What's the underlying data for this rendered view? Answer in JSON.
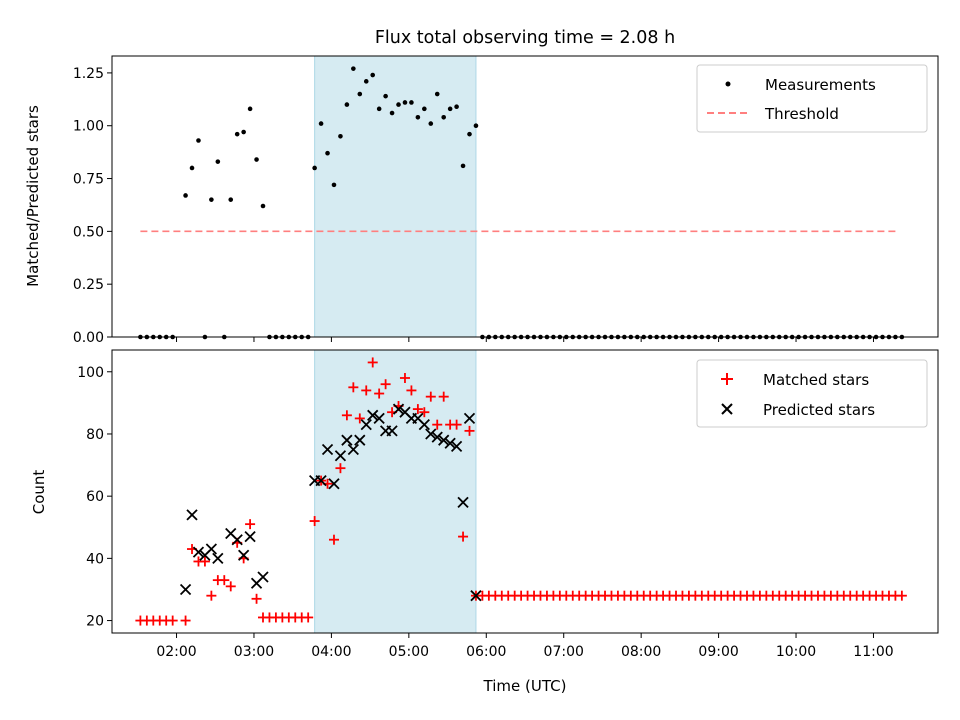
{
  "figure": {
    "title": "Flux total observing time = 2.08 h",
    "xlabel": "Time (UTC)",
    "x_tick_labels": [
      "02:00",
      "03:00",
      "04:00",
      "05:00",
      "06:00",
      "07:00",
      "08:00",
      "09:00",
      "10:00",
      "11:00"
    ]
  },
  "chart_data": [
    {
      "type": "scatter",
      "ylabel": "Matched/Predicted stars",
      "xlim": [
        "01:10",
        "11:50"
      ],
      "ylim": [
        0,
        1.33
      ],
      "y_ticks": [
        0.0,
        0.25,
        0.5,
        0.75,
        1.0,
        1.25
      ],
      "y_tick_labels": [
        "0.00",
        "0.25",
        "0.50",
        "0.75",
        "1.00",
        "1.25"
      ],
      "legend_position": "top-right",
      "legend": [
        "Measurements",
        "Threshold"
      ],
      "shaded_span": [
        "03:47",
        "05:52"
      ],
      "threshold": {
        "name": "Threshold",
        "y": 0.5,
        "x_range": [
          "01:32",
          "11:20"
        ],
        "color": "#ff7f7f"
      },
      "series": [
        {
          "name": "Measurements",
          "color": "#000000",
          "x": [
            "01:32",
            "01:37",
            "01:42",
            "01:47",
            "01:52",
            "01:57",
            "02:07",
            "02:12",
            "02:17",
            "02:22",
            "02:27",
            "02:32",
            "02:37",
            "02:42",
            "02:47",
            "02:52",
            "02:57",
            "03:02",
            "03:07",
            "03:12",
            "03:17",
            "03:22",
            "03:27",
            "03:32",
            "03:37",
            "03:42",
            "03:47",
            "03:52",
            "03:57",
            "04:02",
            "04:07",
            "04:12",
            "04:17",
            "04:22",
            "04:27",
            "04:32",
            "04:37",
            "04:42",
            "04:47",
            "04:52",
            "04:57",
            "05:02",
            "05:07",
            "05:12",
            "05:17",
            "05:22",
            "05:27",
            "05:32",
            "05:37",
            "05:42",
            "05:47",
            "05:52",
            "05:57"
          ],
          "y": [
            0,
            0,
            0,
            0,
            0,
            0,
            0.67,
            0.8,
            0.93,
            0,
            0.65,
            0.83,
            0,
            0.65,
            0.96,
            0.97,
            1.08,
            0.84,
            0.62,
            0,
            0,
            0,
            0,
            0,
            0,
            0,
            0.8,
            1.01,
            0.87,
            0.72,
            0.95,
            1.1,
            1.27,
            1.15,
            1.21,
            1.24,
            1.08,
            1.14,
            1.06,
            1.1,
            1.11,
            1.11,
            1.04,
            1.08,
            1.01,
            1.15,
            1.04,
            1.08,
            1.09,
            0.81,
            0.96,
            1.0,
            0
          ],
          "zero_run_after_06": {
            "x_range": [
              "06:02",
              "11:22"
            ],
            "step_minutes": 5,
            "y": 0
          }
        }
      ]
    },
    {
      "type": "scatter",
      "ylabel": "Count",
      "xlim": [
        "01:10",
        "11:50"
      ],
      "ylim": [
        16,
        107
      ],
      "y_ticks": [
        20,
        40,
        60,
        80,
        100
      ],
      "y_tick_labels": [
        "20",
        "40",
        "60",
        "80",
        "100"
      ],
      "legend_position": "top-right",
      "legend": [
        "Matched stars",
        "Predicted stars"
      ],
      "shaded_span": [
        "03:47",
        "05:52"
      ],
      "series": [
        {
          "name": "Matched stars",
          "color": "#ff0000",
          "marker": "plus",
          "x": [
            "01:32",
            "01:37",
            "01:42",
            "01:47",
            "01:52",
            "01:57",
            "02:07",
            "02:12",
            "02:17",
            "02:22",
            "02:27",
            "02:32",
            "02:37",
            "02:42",
            "02:47",
            "02:52",
            "02:57",
            "03:02",
            "03:07",
            "03:12",
            "03:17",
            "03:22",
            "03:27",
            "03:32",
            "03:37",
            "03:42",
            "03:47",
            "03:52",
            "03:57",
            "04:02",
            "04:07",
            "04:12",
            "04:17",
            "04:22",
            "04:27",
            "04:32",
            "04:37",
            "04:42",
            "04:47",
            "04:52",
            "04:57",
            "05:02",
            "05:07",
            "05:12",
            "05:17",
            "05:22",
            "05:27",
            "05:32",
            "05:37",
            "05:42",
            "05:47",
            "05:52",
            "05:57"
          ],
          "y": [
            20,
            20,
            20,
            20,
            20,
            20,
            20,
            43,
            39,
            39,
            28,
            33,
            33,
            31,
            45,
            40,
            51,
            27,
            21,
            21,
            21,
            21,
            21,
            21,
            21,
            21,
            52,
            65,
            64,
            46,
            69,
            86,
            95,
            85,
            94,
            103,
            93,
            96,
            87,
            89,
            98,
            94,
            88,
            87,
            92,
            83,
            92,
            83,
            83,
            47,
            81,
            28,
            28
          ],
          "constant_run_after_06": {
            "x_range": [
              "06:02",
              "11:22"
            ],
            "step_minutes": 5,
            "y": 28
          }
        },
        {
          "name": "Predicted stars",
          "color": "#000000",
          "marker": "x",
          "x": [
            "02:07",
            "02:12",
            "02:17",
            "02:22",
            "02:27",
            "02:32",
            "02:42",
            "02:47",
            "02:52",
            "02:57",
            "03:02",
            "03:07",
            "03:47",
            "03:52",
            "03:57",
            "04:02",
            "04:07",
            "04:12",
            "04:17",
            "04:22",
            "04:27",
            "04:32",
            "04:37",
            "04:42",
            "04:47",
            "04:52",
            "04:57",
            "05:02",
            "05:07",
            "05:12",
            "05:17",
            "05:22",
            "05:27",
            "05:32",
            "05:37",
            "05:42",
            "05:47",
            "05:52"
          ],
          "y": [
            30,
            54,
            42,
            41,
            43,
            40,
            48,
            46,
            41,
            47,
            32,
            34,
            65,
            65,
            75,
            64,
            73,
            78,
            75,
            78,
            83,
            86,
            85,
            81,
            81,
            88,
            87,
            85,
            85,
            83,
            80,
            79,
            78,
            77,
            76,
            58,
            85,
            28
          ]
        }
      ]
    }
  ]
}
